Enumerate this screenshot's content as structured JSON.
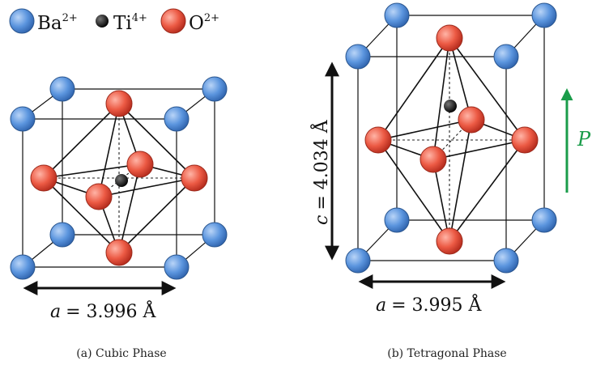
{
  "legend": {
    "ba_label": "Ba",
    "ba_charge": "2+",
    "ti_label": "Ti",
    "ti_charge": "4+",
    "o_label": "O",
    "o_charge": "2+"
  },
  "colors": {
    "ba": "#4f8ad8",
    "ti": "#111111",
    "o": "#e8503c",
    "polarization_arrow": "#1a9c4a"
  },
  "cubic": {
    "param_symbol": "a",
    "param_value": "= 3.996 Å",
    "caption": "(a) Cubic Phase"
  },
  "tetragonal": {
    "a_symbol": "a",
    "a_value": "= 3.995 Å",
    "c_symbol": "c",
    "c_value": "= 4.034 Å",
    "caption": "(b) Tetragonal Phase",
    "polarization_label": "P"
  }
}
